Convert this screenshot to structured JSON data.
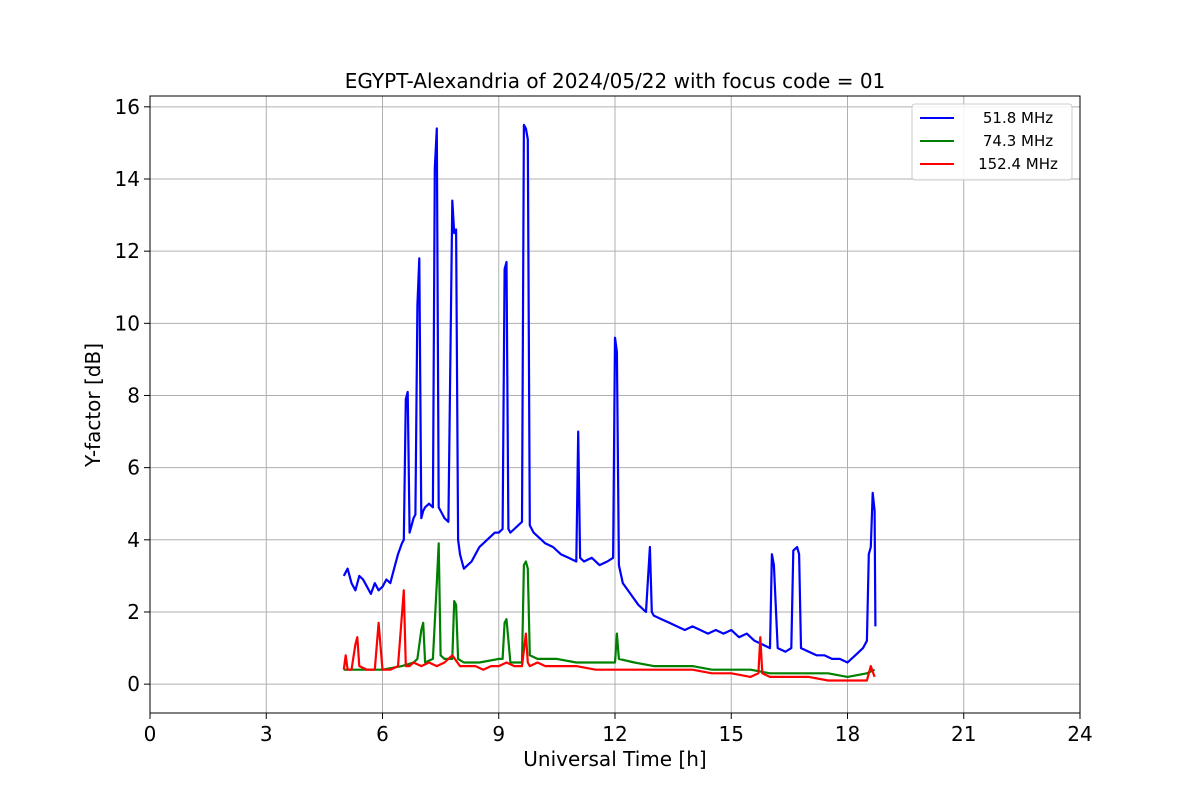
{
  "chart_data": {
    "type": "line",
    "title": "EGYPT-Alexandria of 2024/05/22 with focus code = 01",
    "xlabel": "Universal Time [h]",
    "ylabel": "Y-factor [dB]",
    "xlim": [
      0,
      24
    ],
    "ylim": [
      -0.8,
      16.3
    ],
    "xticks": [
      0,
      3,
      6,
      9,
      12,
      15,
      18,
      21,
      24
    ],
    "yticks": [
      0,
      2,
      4,
      6,
      8,
      10,
      12,
      14,
      16
    ],
    "grid": true,
    "legend_position": "top-right",
    "series": [
      {
        "name": "51.8 MHz",
        "color": "#0000ff",
        "x": [
          5.0,
          5.1,
          5.2,
          5.3,
          5.4,
          5.5,
          5.6,
          5.7,
          5.8,
          5.9,
          6.0,
          6.1,
          6.2,
          6.3,
          6.4,
          6.5,
          6.55,
          6.6,
          6.65,
          6.7,
          6.75,
          6.8,
          6.85,
          6.9,
          6.95,
          7.0,
          7.05,
          7.1,
          7.2,
          7.3,
          7.35,
          7.4,
          7.45,
          7.5,
          7.55,
          7.6,
          7.7,
          7.8,
          7.85,
          7.9,
          7.95,
          8.0,
          8.05,
          8.1,
          8.2,
          8.3,
          8.4,
          8.5,
          8.6,
          8.7,
          8.8,
          8.9,
          9.0,
          9.1,
          9.15,
          9.2,
          9.25,
          9.3,
          9.4,
          9.5,
          9.6,
          9.65,
          9.7,
          9.75,
          9.8,
          9.85,
          9.9,
          10.0,
          10.2,
          10.4,
          10.6,
          10.8,
          11.0,
          11.05,
          11.1,
          11.2,
          11.4,
          11.6,
          11.8,
          11.95,
          12.0,
          12.05,
          12.1,
          12.2,
          12.4,
          12.6,
          12.8,
          12.9,
          12.95,
          13.0,
          13.2,
          13.4,
          13.6,
          13.8,
          14.0,
          14.2,
          14.4,
          14.6,
          14.8,
          15.0,
          15.2,
          15.4,
          15.6,
          15.8,
          16.0,
          16.05,
          16.1,
          16.2,
          16.4,
          16.55,
          16.6,
          16.7,
          16.75,
          16.8,
          17.0,
          17.2,
          17.4,
          17.6,
          17.8,
          18.0,
          18.2,
          18.4,
          18.5,
          18.55,
          18.6,
          18.65,
          18.7,
          18.72
        ],
        "values": [
          3.0,
          3.2,
          2.8,
          2.6,
          3.0,
          2.9,
          2.7,
          2.5,
          2.8,
          2.6,
          2.7,
          2.9,
          2.8,
          3.2,
          3.6,
          3.9,
          4.0,
          7.9,
          8.1,
          4.2,
          4.4,
          4.6,
          4.7,
          10.5,
          11.8,
          4.6,
          4.8,
          4.9,
          5.0,
          4.9,
          14.3,
          15.4,
          4.9,
          4.8,
          4.7,
          4.6,
          4.5,
          13.4,
          12.5,
          12.6,
          4.0,
          3.6,
          3.4,
          3.2,
          3.3,
          3.4,
          3.6,
          3.8,
          3.9,
          4.0,
          4.1,
          4.2,
          4.2,
          4.3,
          11.5,
          11.7,
          4.3,
          4.2,
          4.3,
          4.4,
          4.5,
          15.5,
          15.4,
          15.1,
          4.4,
          4.3,
          4.2,
          4.1,
          3.9,
          3.8,
          3.6,
          3.5,
          3.4,
          7.0,
          3.5,
          3.4,
          3.5,
          3.3,
          3.4,
          3.5,
          9.6,
          9.2,
          3.3,
          2.8,
          2.5,
          2.2,
          2.0,
          3.8,
          2.0,
          1.9,
          1.8,
          1.7,
          1.6,
          1.5,
          1.6,
          1.5,
          1.4,
          1.5,
          1.4,
          1.5,
          1.3,
          1.4,
          1.2,
          1.1,
          1.0,
          3.6,
          3.3,
          1.0,
          0.9,
          1.0,
          3.7,
          3.8,
          3.6,
          1.0,
          0.9,
          0.8,
          0.8,
          0.7,
          0.7,
          0.6,
          0.8,
          1.0,
          1.2,
          3.6,
          3.8,
          5.3,
          4.8,
          1.6
        ]
      },
      {
        "name": "74.3 MHz",
        "color": "#008000",
        "x": [
          5.0,
          5.5,
          6.0,
          6.5,
          6.8,
          6.9,
          7.0,
          7.05,
          7.1,
          7.3,
          7.4,
          7.45,
          7.5,
          7.6,
          7.8,
          7.85,
          7.9,
          7.95,
          8.1,
          8.5,
          9.0,
          9.1,
          9.15,
          9.2,
          9.3,
          9.6,
          9.65,
          9.7,
          9.75,
          9.8,
          10.0,
          10.5,
          11.0,
          11.5,
          12.0,
          12.05,
          12.1,
          12.5,
          13.0,
          13.5,
          14.0,
          14.5,
          15.0,
          15.5,
          16.0,
          16.5,
          17.0,
          17.5,
          18.0,
          18.5,
          18.7
        ],
        "values": [
          0.4,
          0.4,
          0.4,
          0.5,
          0.6,
          0.7,
          1.5,
          1.7,
          0.6,
          0.7,
          2.8,
          3.9,
          0.8,
          0.7,
          0.7,
          2.3,
          2.2,
          0.7,
          0.6,
          0.6,
          0.7,
          0.7,
          1.7,
          1.8,
          0.6,
          0.6,
          3.3,
          3.4,
          3.2,
          0.8,
          0.7,
          0.7,
          0.6,
          0.6,
          0.6,
          1.4,
          0.7,
          0.6,
          0.5,
          0.5,
          0.5,
          0.4,
          0.4,
          0.4,
          0.3,
          0.3,
          0.3,
          0.3,
          0.2,
          0.3,
          0.4
        ]
      },
      {
        "name": "152.4 MHz",
        "color": "#ff0000",
        "x": [
          5.0,
          5.05,
          5.1,
          5.2,
          5.3,
          5.35,
          5.4,
          5.6,
          5.8,
          5.9,
          6.0,
          6.2,
          6.4,
          6.55,
          6.6,
          6.7,
          6.8,
          7.0,
          7.2,
          7.4,
          7.6,
          7.8,
          8.0,
          8.2,
          8.4,
          8.6,
          8.8,
          9.0,
          9.2,
          9.4,
          9.6,
          9.7,
          9.75,
          9.8,
          10.0,
          10.2,
          10.5,
          11.0,
          11.5,
          12.0,
          12.5,
          13.0,
          13.5,
          14.0,
          14.5,
          15.0,
          15.5,
          15.7,
          15.75,
          15.8,
          16.0,
          16.5,
          17.0,
          17.5,
          18.0,
          18.5,
          18.6,
          18.7
        ],
        "values": [
          0.4,
          0.8,
          0.4,
          0.4,
          1.1,
          1.3,
          0.5,
          0.4,
          0.4,
          1.7,
          0.4,
          0.4,
          0.5,
          2.6,
          0.5,
          0.5,
          0.6,
          0.5,
          0.6,
          0.5,
          0.6,
          0.8,
          0.5,
          0.5,
          0.5,
          0.4,
          0.5,
          0.5,
          0.6,
          0.5,
          0.5,
          1.4,
          0.6,
          0.5,
          0.6,
          0.5,
          0.5,
          0.5,
          0.4,
          0.4,
          0.4,
          0.4,
          0.4,
          0.4,
          0.3,
          0.3,
          0.2,
          0.3,
          1.3,
          0.3,
          0.2,
          0.2,
          0.2,
          0.1,
          0.1,
          0.1,
          0.5,
          0.2
        ]
      }
    ]
  }
}
